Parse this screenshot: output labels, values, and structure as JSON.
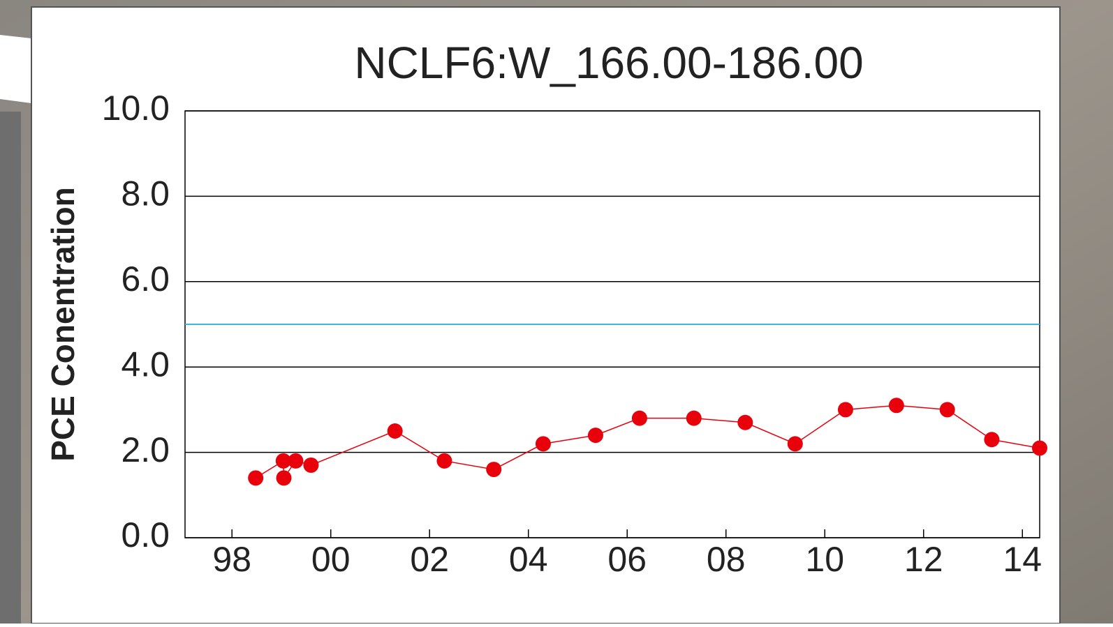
{
  "chart_data": {
    "type": "line",
    "title": "NCLF6:W_166.00-186.00",
    "y_label": "PCE Conentration",
    "x": [
      1998.48,
      1999.04,
      1999.05,
      1999.29,
      1999.6,
      2001.3,
      2002.3,
      2003.3,
      2004.3,
      2005.36,
      2006.25,
      2007.35,
      2008.39,
      2009.4,
      2010.42,
      2011.45,
      2012.48,
      2013.38,
      2014.35
    ],
    "series": [
      {
        "color": "#e8000b",
        "values": [
          1.4,
          1.8,
          1.4,
          1.8,
          1.7,
          2.5,
          1.8,
          1.6,
          2.2,
          2.4,
          2.8,
          2.8,
          2.7,
          2.2,
          3.0,
          3.1,
          3.0,
          2.3,
          2.1
        ]
      }
    ],
    "xlim": [
      1997.05,
      2014.35
    ],
    "ylim": [
      0,
      10
    ],
    "xticks": [
      {
        "value": 1998,
        "label": "98"
      },
      {
        "value": 2000,
        "label": "00"
      },
      {
        "value": 2002,
        "label": "02"
      },
      {
        "value": 2004,
        "label": "04"
      },
      {
        "value": 2006,
        "label": "06"
      },
      {
        "value": 2008,
        "label": "08"
      },
      {
        "value": 2010,
        "label": "10"
      },
      {
        "value": 2012,
        "label": "12"
      },
      {
        "value": 2014,
        "label": "14"
      }
    ],
    "yticks": [
      {
        "value": 0,
        "label": "0.0"
      },
      {
        "value": 2,
        "label": "2.0"
      },
      {
        "value": 4,
        "label": "4.0"
      },
      {
        "value": 6,
        "label": "6.0"
      },
      {
        "value": 8,
        "label": "8.0"
      },
      {
        "value": 10,
        "label": "10.0"
      }
    ],
    "reference_line": {
      "value": 5,
      "color": "#3cb8d8"
    },
    "grid": true
  }
}
